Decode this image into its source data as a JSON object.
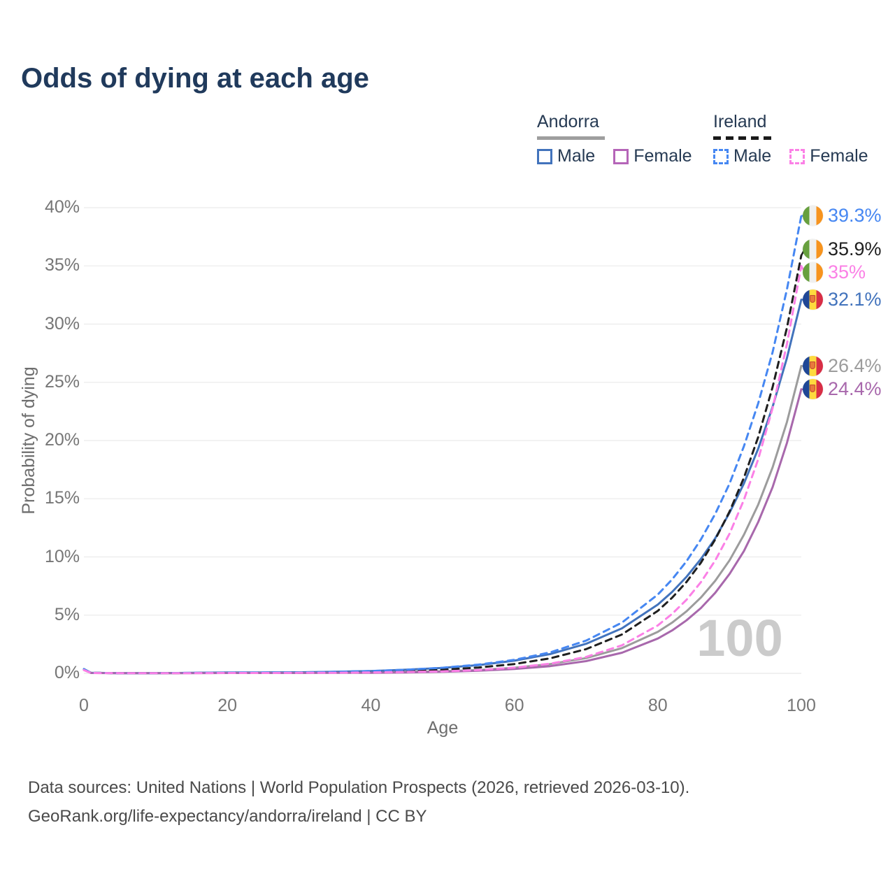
{
  "title": "Odds of dying at each age",
  "legend": {
    "groups": [
      {
        "country": "Andorra",
        "line_style": "solid",
        "underline_color": "#9E9E9E",
        "items": [
          {
            "label": "Male",
            "color": "#4273BC",
            "dash": false
          },
          {
            "label": "Female",
            "color": "#B565B8",
            "dash": false
          }
        ]
      },
      {
        "country": "Ireland",
        "line_style": "dashed",
        "underline_color": "#1A1A1A",
        "items": [
          {
            "label": "Male",
            "color": "#4687F2",
            "dash": true
          },
          {
            "label": "Female",
            "color": "#FB80E6",
            "dash": true
          }
        ]
      }
    ]
  },
  "end_labels": [
    {
      "series": "ireland_male",
      "value": "39.3%",
      "color": "#4687F2",
      "flag": "ireland"
    },
    {
      "series": "ireland_total",
      "value": "35.9%",
      "color": "#1F1F1F",
      "flag": "ireland"
    },
    {
      "series": "ireland_female",
      "value": "35%",
      "color": "#FB80E6",
      "flag": "ireland"
    },
    {
      "series": "andorra_male",
      "value": "32.1%",
      "color": "#4273BC",
      "flag": "andorra"
    },
    {
      "series": "andorra_total",
      "value": "26.4%",
      "color": "#9C9C9C",
      "flag": "andorra"
    },
    {
      "series": "andorra_female",
      "value": "24.4%",
      "color": "#A868AC",
      "flag": "andorra"
    }
  ],
  "watermark": "100",
  "source_line1": "Data sources: United Nations | World Population Prospects (2026, retrieved 2026-03-10).",
  "source_line2": "GeoRank.org/life-expectancy/andorra/ireland | CC BY",
  "colors": {
    "title": "#203A5C",
    "tick": "#767676",
    "grid": "#EBEBEB",
    "watermark": "#CBCBCB"
  },
  "chart_data": {
    "type": "line",
    "title": "Odds of dying at each age",
    "xlabel": "Age",
    "ylabel": "Probability of dying",
    "xlim": [
      0,
      100
    ],
    "ylim_pct": [
      0,
      40
    ],
    "x_ticks": [
      "0",
      "20",
      "40",
      "60",
      "80",
      "100"
    ],
    "y_ticks": [
      "0%",
      "5%",
      "10%",
      "15%",
      "20%",
      "25%",
      "30%",
      "35%",
      "40%"
    ],
    "grid": "horizontal",
    "legend_position": "top-right",
    "series": [
      {
        "name": "andorra_total",
        "country": "Andorra",
        "sex": "total",
        "color": "#9C9C9C",
        "dash": false,
        "end_value_pct": 26.4,
        "points": [
          [
            0,
            0.33
          ],
          [
            1,
            0.04
          ],
          [
            5,
            0.02
          ],
          [
            10,
            0.02
          ],
          [
            15,
            0.03
          ],
          [
            20,
            0.05
          ],
          [
            25,
            0.05
          ],
          [
            30,
            0.05
          ],
          [
            35,
            0.07
          ],
          [
            40,
            0.1
          ],
          [
            45,
            0.14
          ],
          [
            50,
            0.18
          ],
          [
            55,
            0.29
          ],
          [
            60,
            0.48
          ],
          [
            65,
            0.8
          ],
          [
            70,
            1.31
          ],
          [
            75,
            2.17
          ],
          [
            80,
            3.57
          ],
          [
            82,
            4.36
          ],
          [
            84,
            5.33
          ],
          [
            86,
            6.51
          ],
          [
            88,
            7.95
          ],
          [
            90,
            9.71
          ],
          [
            92,
            11.9
          ],
          [
            94,
            14.5
          ],
          [
            96,
            17.7
          ],
          [
            98,
            21.6
          ],
          [
            100,
            26.4
          ]
        ]
      },
      {
        "name": "andorra_male",
        "country": "Andorra",
        "sex": "male",
        "color": "#4273BC",
        "dash": false,
        "end_value_pct": 32.1,
        "points": [
          [
            0,
            0.37
          ],
          [
            1,
            0.04
          ],
          [
            5,
            0.02
          ],
          [
            10,
            0.02
          ],
          [
            15,
            0.04
          ],
          [
            20,
            0.07
          ],
          [
            25,
            0.08
          ],
          [
            30,
            0.09
          ],
          [
            35,
            0.13
          ],
          [
            40,
            0.2
          ],
          [
            45,
            0.31
          ],
          [
            50,
            0.47
          ],
          [
            55,
            0.71
          ],
          [
            60,
            1.09
          ],
          [
            65,
            1.66
          ],
          [
            70,
            2.54
          ],
          [
            75,
            3.87
          ],
          [
            80,
            5.91
          ],
          [
            82,
            7.0
          ],
          [
            84,
            8.29
          ],
          [
            86,
            9.82
          ],
          [
            88,
            11.6
          ],
          [
            90,
            13.8
          ],
          [
            92,
            16.3
          ],
          [
            94,
            19.3
          ],
          [
            96,
            22.9
          ],
          [
            98,
            27.1
          ],
          [
            100,
            32.1
          ]
        ]
      },
      {
        "name": "andorra_female",
        "country": "Andorra",
        "sex": "female",
        "color": "#A868AC",
        "dash": false,
        "end_value_pct": 24.4,
        "points": [
          [
            0,
            0.3
          ],
          [
            1,
            0.03
          ],
          [
            5,
            0.01
          ],
          [
            10,
            0.01
          ],
          [
            15,
            0.02
          ],
          [
            20,
            0.03
          ],
          [
            25,
            0.03
          ],
          [
            30,
            0.03
          ],
          [
            35,
            0.04
          ],
          [
            40,
            0.05
          ],
          [
            45,
            0.08
          ],
          [
            50,
            0.13
          ],
          [
            55,
            0.22
          ],
          [
            60,
            0.37
          ],
          [
            65,
            0.62
          ],
          [
            70,
            1.05
          ],
          [
            75,
            1.77
          ],
          [
            80,
            2.99
          ],
          [
            82,
            3.69
          ],
          [
            84,
            4.55
          ],
          [
            86,
            5.61
          ],
          [
            88,
            6.92
          ],
          [
            90,
            8.54
          ],
          [
            92,
            10.5
          ],
          [
            94,
            13.0
          ],
          [
            96,
            16.0
          ],
          [
            98,
            19.8
          ],
          [
            100,
            24.4
          ]
        ]
      },
      {
        "name": "ireland_total",
        "country": "Ireland",
        "sex": "total",
        "color": "#1F1F1F",
        "dash": true,
        "end_value_pct": 35.9,
        "points": [
          [
            0,
            0.3
          ],
          [
            1,
            0.04
          ],
          [
            5,
            0.02
          ],
          [
            10,
            0.02
          ],
          [
            15,
            0.03
          ],
          [
            20,
            0.05
          ],
          [
            25,
            0.06
          ],
          [
            30,
            0.05
          ],
          [
            35,
            0.08
          ],
          [
            40,
            0.12
          ],
          [
            45,
            0.2
          ],
          [
            50,
            0.31
          ],
          [
            55,
            0.5
          ],
          [
            60,
            0.8
          ],
          [
            65,
            1.29
          ],
          [
            70,
            2.08
          ],
          [
            75,
            3.34
          ],
          [
            80,
            5.37
          ],
          [
            82,
            6.5
          ],
          [
            84,
            7.85
          ],
          [
            86,
            9.5
          ],
          [
            88,
            11.5
          ],
          [
            90,
            13.9
          ],
          [
            92,
            16.8
          ],
          [
            94,
            20.3
          ],
          [
            96,
            24.6
          ],
          [
            98,
            29.7
          ],
          [
            100,
            35.9
          ]
        ]
      },
      {
        "name": "ireland_male",
        "country": "Ireland",
        "sex": "male",
        "color": "#4687F2",
        "dash": true,
        "end_value_pct": 39.3,
        "points": [
          [
            0,
            0.35
          ],
          [
            1,
            0.04
          ],
          [
            5,
            0.02
          ],
          [
            10,
            0.02
          ],
          [
            15,
            0.04
          ],
          [
            20,
            0.06
          ],
          [
            25,
            0.07
          ],
          [
            30,
            0.08
          ],
          [
            35,
            0.13
          ],
          [
            40,
            0.2
          ],
          [
            45,
            0.31
          ],
          [
            50,
            0.48
          ],
          [
            55,
            0.75
          ],
          [
            60,
            1.16
          ],
          [
            65,
            1.8
          ],
          [
            70,
            2.81
          ],
          [
            75,
            4.36
          ],
          [
            80,
            6.77
          ],
          [
            82,
            8.07
          ],
          [
            84,
            9.63
          ],
          [
            86,
            11.5
          ],
          [
            88,
            13.7
          ],
          [
            90,
            16.3
          ],
          [
            92,
            19.5
          ],
          [
            94,
            23.2
          ],
          [
            96,
            27.6
          ],
          [
            98,
            33.0
          ],
          [
            100,
            39.3
          ]
        ]
      },
      {
        "name": "ireland_female",
        "country": "Ireland",
        "sex": "female",
        "color": "#FB80E6",
        "dash": true,
        "end_value_pct": 35.0,
        "points": [
          [
            0,
            0.28
          ],
          [
            1,
            0.03
          ],
          [
            5,
            0.02
          ],
          [
            10,
            0.02
          ],
          [
            15,
            0.02
          ],
          [
            20,
            0.03
          ],
          [
            25,
            0.03
          ],
          [
            30,
            0.04
          ],
          [
            35,
            0.05
          ],
          [
            40,
            0.08
          ],
          [
            45,
            0.12
          ],
          [
            50,
            0.17
          ],
          [
            55,
            0.28
          ],
          [
            60,
            0.49
          ],
          [
            65,
            0.83
          ],
          [
            70,
            1.41
          ],
          [
            75,
            2.41
          ],
          [
            80,
            4.12
          ],
          [
            82,
            5.11
          ],
          [
            84,
            6.32
          ],
          [
            86,
            7.83
          ],
          [
            88,
            9.7
          ],
          [
            90,
            12.0
          ],
          [
            92,
            14.9
          ],
          [
            94,
            18.4
          ],
          [
            96,
            22.8
          ],
          [
            98,
            28.3
          ],
          [
            100,
            35.0
          ]
        ]
      }
    ]
  }
}
